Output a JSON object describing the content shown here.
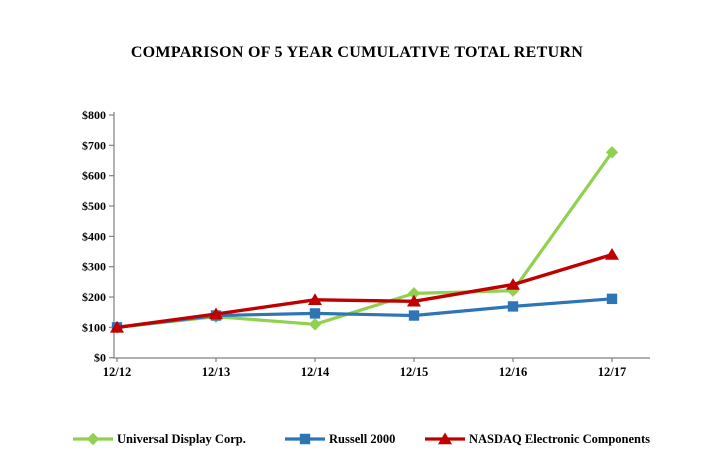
{
  "title": "COMPARISON OF 5 YEAR CUMULATIVE TOTAL RETURN",
  "chart_data": {
    "type": "line",
    "title": "COMPARISON OF 5 YEAR CUMULATIVE TOTAL RETURN",
    "categories": [
      "12/12",
      "12/13",
      "12/14",
      "12/15",
      "12/16",
      "12/17"
    ],
    "series": [
      {
        "name": "Universal Display Corp.",
        "color": "#92D050",
        "marker": "diamond",
        "values": [
          100,
          135,
          110,
          212,
          221,
          677
        ]
      },
      {
        "name": "Russell 2000",
        "color": "#2E75B6",
        "marker": "square",
        "values": [
          100,
          139,
          146,
          139,
          169,
          194
        ]
      },
      {
        "name": "NASDAQ Electronic Components",
        "color": "#C00000",
        "marker": "triangle",
        "values": [
          100,
          144,
          191,
          186,
          241,
          340
        ]
      }
    ],
    "xlabel": "",
    "ylabel": "",
    "ylim": [
      0,
      800
    ],
    "ytick_step": 100,
    "ytick_labels": [
      "$0",
      "$100",
      "$200",
      "$300",
      "$400",
      "$500",
      "$600",
      "$700",
      "$800"
    ],
    "grid": false,
    "legend_position": "bottom",
    "axis_color": "#808080",
    "text_color": "#000000"
  }
}
